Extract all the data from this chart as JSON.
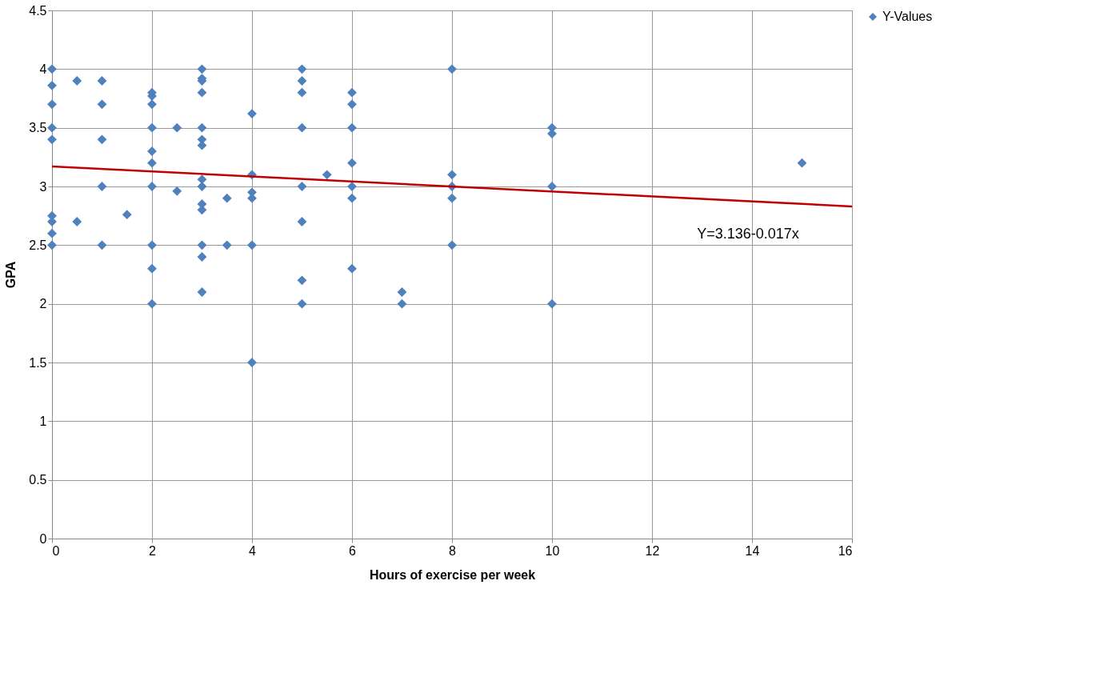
{
  "chart_data": {
    "type": "scatter",
    "xlabel": "Hours of exercise per week",
    "ylabel": "GPA",
    "xlim": [
      0,
      16
    ],
    "xticks": [
      0,
      2,
      4,
      6,
      8,
      10,
      12,
      14,
      16
    ],
    "ylim": [
      0,
      4.5
    ],
    "yticks": [
      0,
      0.5,
      1,
      1.5,
      2,
      2.5,
      3,
      3.5,
      4,
      4.5
    ],
    "grid": true,
    "legend": "right",
    "annotations": [
      "Y=3.136-0.017x"
    ],
    "series": [
      {
        "name": "Y-Values",
        "color": "#4f81bd",
        "type": "scatter",
        "marker": "diamond",
        "x": [
          0,
          0,
          0,
          0,
          0,
          0,
          0,
          0,
          0,
          0.5,
          0.5,
          1,
          1,
          1,
          1,
          1,
          1.5,
          2,
          2,
          2,
          2,
          2,
          2,
          2,
          2,
          2,
          2,
          2.5,
          2.5,
          3,
          3,
          3,
          3,
          3,
          3,
          3,
          3,
          3,
          3,
          3,
          3,
          3,
          3,
          3.5,
          3.5,
          4,
          4,
          4,
          4,
          4,
          4,
          5,
          5,
          5,
          5,
          5,
          5,
          5,
          5,
          5.5,
          6,
          6,
          6,
          6,
          6,
          6,
          6,
          7,
          7,
          8,
          8,
          8,
          8,
          8,
          10,
          10,
          10,
          10,
          15
        ],
        "values": [
          4,
          3.86,
          3.7,
          3.5,
          3.4,
          2.75,
          2.7,
          2.6,
          2.5,
          3.9,
          2.7,
          3.9,
          3.7,
          3.4,
          3,
          2.5,
          2.76,
          3.8,
          3.77,
          3.7,
          3.5,
          3.3,
          3.2,
          3,
          2.5,
          2.3,
          2,
          3.5,
          2.96,
          4,
          3.92,
          3.9,
          3.8,
          3.5,
          3.4,
          3.35,
          3.06,
          3,
          2.85,
          2.8,
          2.5,
          2.4,
          2.1,
          2.9,
          2.5,
          3.62,
          3.1,
          2.95,
          2.9,
          2.5,
          1.5,
          4,
          3.9,
          3.8,
          3.5,
          3,
          2.7,
          2.2,
          2,
          3.1,
          3.8,
          3.7,
          3.5,
          3.2,
          3,
          2.9,
          2.3,
          2.1,
          2,
          4,
          3.1,
          3,
          2.9,
          2.5,
          3.5,
          3.45,
          3,
          2,
          3.2
        ]
      },
      {
        "color": "#c00000",
        "type": "line",
        "marker": "none",
        "x": [
          0,
          16
        ],
        "values": [
          3.17,
          2.83
        ]
      }
    ]
  }
}
